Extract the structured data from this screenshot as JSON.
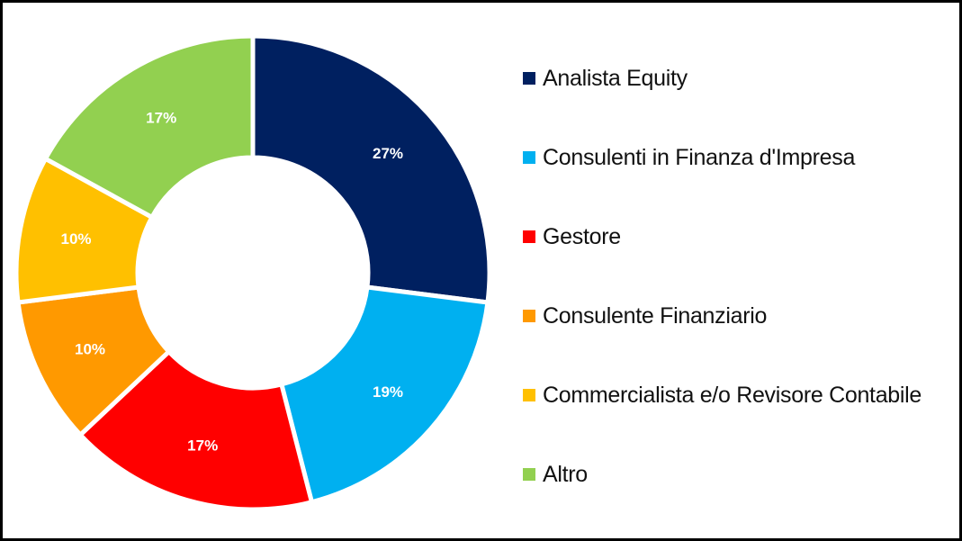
{
  "chart_data": {
    "type": "pie",
    "donut": true,
    "title": "",
    "categories": [
      "Analista Equity",
      "Consulenti in Finanza d'Impresa",
      "Gestore",
      "Consulente Finanziario",
      "Commercialista e/o Revisore Contabile",
      "Altro"
    ],
    "values": [
      27,
      19,
      17,
      10,
      10,
      17
    ],
    "value_labels": [
      "27%",
      "19%",
      "17%",
      "10%",
      "10%",
      "17%"
    ],
    "colors": [
      "#002060",
      "#00b0f0",
      "#ff0000",
      "#ff9900",
      "#ffc000",
      "#92d050"
    ],
    "legend_position": "right"
  }
}
